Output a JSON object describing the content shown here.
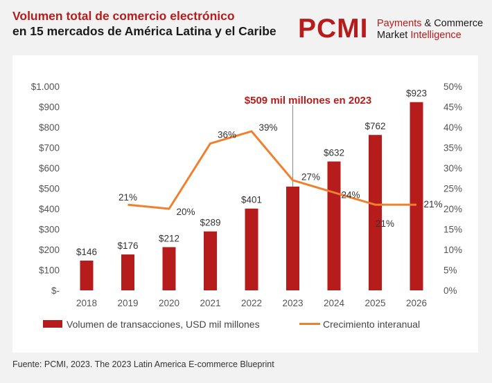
{
  "header": {
    "title_line1": "Volumen total de comercio electrónico",
    "title_line2": "en 15 mercados de América Latina y el Caribe"
  },
  "brand": {
    "logo_text": "PCMI",
    "word1": "Payments",
    "word2": "& Commerce",
    "word3": "Market",
    "word4": "Intelligence"
  },
  "chart_data": {
    "type": "bar",
    "categories": [
      "2018",
      "2019",
      "2020",
      "2021",
      "2022",
      "2023",
      "2024",
      "2025",
      "2026"
    ],
    "series": [
      {
        "name": "Volumen de transacciones, USD mil millones",
        "type": "bar",
        "axis": "left",
        "values": [
          146,
          176,
          212,
          289,
          401,
          509,
          632,
          762,
          923
        ],
        "labels": [
          "$146",
          "$176",
          "$212",
          "$289",
          "$401",
          "",
          "$632",
          "$762",
          "$923"
        ]
      },
      {
        "name": "Crecimiento interanual",
        "type": "line",
        "axis": "right",
        "values": [
          null,
          21,
          20,
          36,
          39,
          27,
          24,
          21,
          21
        ],
        "labels": [
          "",
          "21%",
          "20%",
          "36%",
          "39%",
          "27%",
          "24%",
          "21%",
          "21%"
        ]
      }
    ],
    "y_left_ticks": [
      "$-",
      "$100",
      "$200",
      "$300",
      "$400",
      "$500",
      "$600",
      "$700",
      "$800",
      "$900",
      "$1.000"
    ],
    "y_right_ticks": [
      "0%",
      "5%",
      "10%",
      "15%",
      "20%",
      "25%",
      "30%",
      "35%",
      "40%",
      "45%",
      "50%"
    ],
    "ylim_left": [
      0,
      1000
    ],
    "ylim_right": [
      0,
      50
    ],
    "annotation": {
      "text": "$509 mil millones en 2023",
      "category": "2023"
    },
    "colors": {
      "bar": "#b71c1c",
      "line": "#f07f2e",
      "annotation": "#b71c1c"
    },
    "grid": false,
    "legend": "bottom"
  },
  "source": "Fuente: PCMI, 2023. The 2023 Latin America E-commerce Blueprint"
}
